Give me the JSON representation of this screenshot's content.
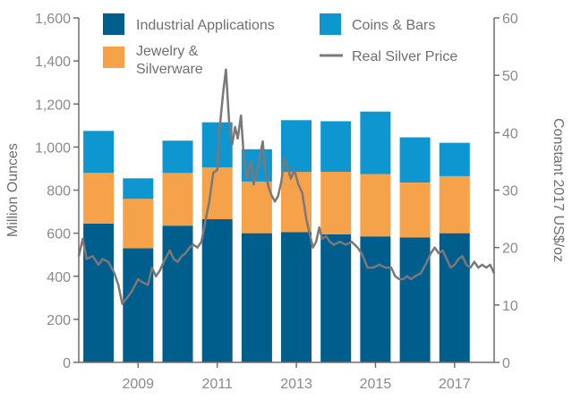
{
  "chart_data": {
    "type": "bar",
    "stacked": true,
    "x": [
      2008,
      2009,
      2010,
      2011,
      2012,
      2013,
      2014,
      2015,
      2016,
      2017
    ],
    "x_tick_labels": [
      "2009",
      "2011",
      "2013",
      "2015",
      "2017"
    ],
    "x_tick_values": [
      2009,
      2011,
      2013,
      2015,
      2017
    ],
    "series": [
      {
        "name": "Industrial Applications",
        "color": "#005e8d",
        "values": [
          645,
          530,
          635,
          665,
          600,
          605,
          595,
          585,
          580,
          600
        ]
      },
      {
        "name": "Jewelry & Silverware",
        "color": "#f5a24a",
        "values": [
          235,
          230,
          245,
          240,
          240,
          280,
          290,
          290,
          255,
          265
        ]
      },
      {
        "name": "Coins & Bars",
        "color": "#0d96d0",
        "values": [
          195,
          95,
          150,
          210,
          150,
          240,
          235,
          290,
          210,
          155
        ]
      }
    ],
    "line_series": {
      "name": "Real Silver Price",
      "color": "#7d7878",
      "axis": "right",
      "points": [
        [
          2007.5,
          18.5
        ],
        [
          2007.6,
          21.5
        ],
        [
          2007.7,
          18.0
        ],
        [
          2007.85,
          18.5
        ],
        [
          2008.0,
          17.0
        ],
        [
          2008.1,
          18.0
        ],
        [
          2008.25,
          17.5
        ],
        [
          2008.4,
          15.5
        ],
        [
          2008.5,
          13.5
        ],
        [
          2008.6,
          10.2
        ],
        [
          2008.75,
          11.5
        ],
        [
          2008.85,
          12.5
        ],
        [
          2009.0,
          14.5
        ],
        [
          2009.1,
          14.0
        ],
        [
          2009.25,
          13.5
        ],
        [
          2009.35,
          16.5
        ],
        [
          2009.45,
          15.0
        ],
        [
          2009.55,
          16.0
        ],
        [
          2009.65,
          17.5
        ],
        [
          2009.8,
          19.5
        ],
        [
          2009.9,
          18.0
        ],
        [
          2010.0,
          17.5
        ],
        [
          2010.1,
          18.5
        ],
        [
          2010.2,
          19.0
        ],
        [
          2010.3,
          20.0
        ],
        [
          2010.4,
          20.5
        ],
        [
          2010.5,
          20.0
        ],
        [
          2010.6,
          21.0
        ],
        [
          2010.7,
          24.5
        ],
        [
          2010.8,
          28.0
        ],
        [
          2010.9,
          33.0
        ],
        [
          2011.0,
          33.5
        ],
        [
          2011.05,
          40.0
        ],
        [
          2011.15,
          47.0
        ],
        [
          2011.22,
          51.0
        ],
        [
          2011.3,
          42.0
        ],
        [
          2011.38,
          38.0
        ],
        [
          2011.45,
          41.0
        ],
        [
          2011.52,
          39.0
        ],
        [
          2011.6,
          43.0
        ],
        [
          2011.67,
          36.0
        ],
        [
          2011.75,
          32.0
        ],
        [
          2011.85,
          35.0
        ],
        [
          2011.92,
          31.0
        ],
        [
          2012.0,
          33.0
        ],
        [
          2012.08,
          36.0
        ],
        [
          2012.15,
          38.5
        ],
        [
          2012.22,
          33.0
        ],
        [
          2012.3,
          30.5
        ],
        [
          2012.38,
          29.0
        ],
        [
          2012.46,
          28.0
        ],
        [
          2012.54,
          29.0
        ],
        [
          2012.62,
          31.5
        ],
        [
          2012.7,
          35.5
        ],
        [
          2012.78,
          34.0
        ],
        [
          2012.86,
          32.0
        ],
        [
          2012.95,
          33.5
        ],
        [
          2013.05,
          31.0
        ],
        [
          2013.15,
          29.5
        ],
        [
          2013.25,
          25.0
        ],
        [
          2013.35,
          22.0
        ],
        [
          2013.42,
          20.0
        ],
        [
          2013.5,
          21.0
        ],
        [
          2013.58,
          23.5
        ],
        [
          2013.65,
          21.5
        ],
        [
          2013.75,
          22.0
        ],
        [
          2013.85,
          21.0
        ],
        [
          2013.95,
          20.5
        ],
        [
          2014.1,
          21.0
        ],
        [
          2014.25,
          20.5
        ],
        [
          2014.4,
          21.0
        ],
        [
          2014.55,
          20.0
        ],
        [
          2014.65,
          19.0
        ],
        [
          2014.8,
          16.5
        ],
        [
          2014.95,
          16.5
        ],
        [
          2015.1,
          17.0
        ],
        [
          2015.25,
          16.5
        ],
        [
          2015.4,
          16.5
        ],
        [
          2015.5,
          15.0
        ],
        [
          2015.6,
          14.5
        ],
        [
          2015.7,
          14.5
        ],
        [
          2015.8,
          15.0
        ],
        [
          2015.9,
          14.5
        ],
        [
          2016.0,
          15.0
        ],
        [
          2016.15,
          15.5
        ],
        [
          2016.3,
          17.5
        ],
        [
          2016.4,
          19.0
        ],
        [
          2016.5,
          20.0
        ],
        [
          2016.6,
          19.0
        ],
        [
          2016.7,
          19.5
        ],
        [
          2016.8,
          18.0
        ],
        [
          2016.9,
          16.5
        ],
        [
          2017.0,
          17.0
        ],
        [
          2017.1,
          18.0
        ],
        [
          2017.2,
          18.5
        ],
        [
          2017.3,
          17.0
        ],
        [
          2017.4,
          16.5
        ],
        [
          2017.5,
          17.5
        ],
        [
          2017.6,
          16.5
        ],
        [
          2017.7,
          17.0
        ],
        [
          2017.8,
          16.5
        ],
        [
          2017.9,
          17.0
        ],
        [
          2018.0,
          15.5
        ]
      ]
    },
    "y_left": {
      "label": "Million Ounces",
      "min": 0,
      "max": 1600,
      "ticks": [
        0,
        200,
        400,
        600,
        800,
        1000,
        1200,
        1400,
        1600
      ],
      "tick_labels": [
        "0",
        "200",
        "400",
        "600",
        "800",
        "1,000",
        "1,200",
        "1,400",
        "1,600"
      ]
    },
    "y_right": {
      "label": "Constant 2017 US$/oz",
      "min": 0,
      "max": 60,
      "ticks": [
        0,
        10,
        20,
        30,
        40,
        50,
        60
      ],
      "tick_labels": [
        "0",
        "10",
        "20",
        "30",
        "40",
        "50",
        "60"
      ]
    },
    "legend": [
      {
        "label_lines": [
          "Industrial Applications"
        ],
        "kind": "square",
        "color": "#005e8d"
      },
      {
        "label_lines": [
          "Coins & Bars"
        ],
        "kind": "square",
        "color": "#0d96d0"
      },
      {
        "label_lines": [
          "Jewelry &",
          "Silverware"
        ],
        "kind": "square",
        "color": "#f5a24a"
      },
      {
        "label_lines": [
          "Real Silver Price"
        ],
        "kind": "line",
        "color": "#7d7878"
      }
    ],
    "grid": false
  }
}
